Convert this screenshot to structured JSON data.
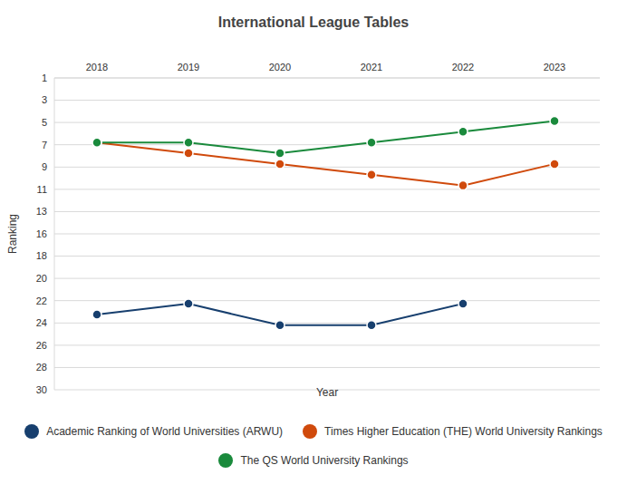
{
  "chart_data": {
    "type": "line",
    "title": "International League Tables",
    "x_label": "Year",
    "y_label": "Ranking",
    "categories": [
      "2018",
      "2019",
      "2020",
      "2021",
      "2022",
      "2023"
    ],
    "series": [
      {
        "name": "Academic Ranking of World Universities (ARWU)",
        "color": "#173f6e",
        "marker": "circle",
        "values": [
          23,
          22,
          24,
          24,
          22,
          null
        ]
      },
      {
        "name": "Times Higher Education (THE) World University Rankings",
        "color": "#d04a0c",
        "marker": "circle",
        "values": [
          7,
          8,
          9,
          10,
          11,
          9
        ]
      },
      {
        "name": "The QS World University Rankings",
        "color": "#1a8a3c",
        "marker": "circle",
        "values": [
          7,
          7,
          8,
          7,
          6,
          5
        ]
      }
    ],
    "ylim": [
      1,
      30
    ],
    "yticks": [
      1,
      {
        "value": 3.07,
        "label": "3"
      },
      {
        "value": 5.14,
        "label": "5"
      },
      {
        "value": 7.21,
        "label": "7"
      },
      {
        "value": 9.29,
        "label": "9"
      },
      {
        "value": 11.36,
        "label": "11"
      },
      {
        "value": 13.43,
        "label": "13"
      },
      {
        "value": 15.5,
        "label": "16"
      },
      {
        "value": 17.57,
        "label": "18"
      },
      {
        "value": 19.64,
        "label": "20"
      },
      {
        "value": 21.71,
        "label": "22"
      },
      {
        "value": 23.79,
        "label": "24"
      },
      {
        "value": 25.86,
        "label": "26"
      },
      {
        "value": 27.93,
        "label": "28"
      },
      30
    ],
    "grid": true,
    "legend": "bottom"
  }
}
